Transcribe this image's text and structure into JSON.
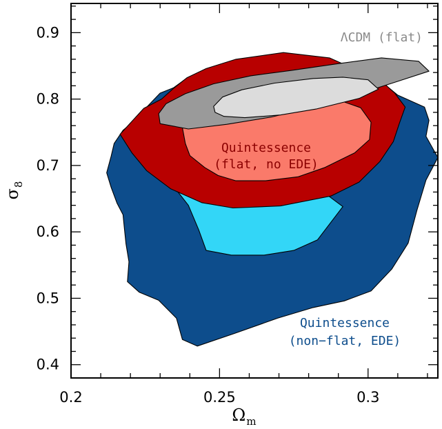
{
  "chart_data": {
    "type": "contour",
    "xlabel": "Ω",
    "xlabel_sub": "m",
    "ylabel": "σ",
    "ylabel_sub": "8",
    "xlim": [
      0.2,
      0.3235
    ],
    "ylim": [
      0.38,
      0.944
    ],
    "x_ticks": [
      0.2,
      0.25,
      0.3
    ],
    "x_tick_labels": [
      "0.2",
      "0.25",
      "0.3"
    ],
    "y_ticks": [
      0.4,
      0.5,
      0.6,
      0.7,
      0.8,
      0.9
    ],
    "y_tick_labels": [
      "0.4",
      "0.5",
      "0.6",
      "0.7",
      "0.8",
      "0.9"
    ],
    "grid": false,
    "annotations": [
      {
        "id": "lcdm",
        "lines": [
          "ΛCDM (flat)"
        ],
        "color": "#8a8a8a"
      },
      {
        "id": "quint-flat",
        "lines": [
          "Quintessence",
          "(flat, no EDE)"
        ],
        "color": "#8b0000"
      },
      {
        "id": "quint-nonflat",
        "lines": [
          "Quintessence",
          "(non−flat, EDE)"
        ],
        "color": "#0d4d8c"
      }
    ],
    "series": [
      {
        "id": "quint-nonflat-outer",
        "color": "#0d4d8c",
        "points": [
          [
            0.2175,
            0.753
          ],
          [
            0.222,
            0.77
          ],
          [
            0.2255,
            0.788
          ],
          [
            0.23,
            0.809
          ],
          [
            0.2345,
            0.817
          ],
          [
            0.2385,
            0.83
          ],
          [
            0.2435,
            0.836
          ],
          [
            0.2485,
            0.84
          ],
          [
            0.261,
            0.857
          ],
          [
            0.2805,
            0.862
          ],
          [
            0.292,
            0.849
          ],
          [
            0.298,
            0.829
          ],
          [
            0.307,
            0.817
          ],
          [
            0.31,
            0.806
          ],
          [
            0.319,
            0.788
          ],
          [
            0.3205,
            0.768
          ],
          [
            0.3195,
            0.744
          ],
          [
            0.3235,
            0.712
          ],
          [
            0.3195,
            0.678
          ],
          [
            0.3165,
            0.633
          ],
          [
            0.3135,
            0.583
          ],
          [
            0.308,
            0.544
          ],
          [
            0.301,
            0.511
          ],
          [
            0.292,
            0.496
          ],
          [
            0.2815,
            0.486
          ],
          [
            0.2695,
            0.47
          ],
          [
            0.255,
            0.447
          ],
          [
            0.2425,
            0.428
          ],
          [
            0.2375,
            0.438
          ],
          [
            0.2355,
            0.47
          ],
          [
            0.2295,
            0.497
          ],
          [
            0.223,
            0.509
          ],
          [
            0.219,
            0.525
          ],
          [
            0.2195,
            0.555
          ],
          [
            0.2185,
            0.582
          ],
          [
            0.218,
            0.604
          ],
          [
            0.2175,
            0.626
          ],
          [
            0.2155,
            0.643
          ],
          [
            0.2135,
            0.667
          ],
          [
            0.212,
            0.689
          ],
          [
            0.2135,
            0.714
          ],
          [
            0.2145,
            0.733
          ]
        ]
      },
      {
        "id": "quint-nonflat-inner",
        "color": "#33d6f7",
        "points": [
          [
            0.2325,
            0.709
          ],
          [
            0.236,
            0.66
          ],
          [
            0.2395,
            0.64
          ],
          [
            0.243,
            0.603
          ],
          [
            0.2455,
            0.572
          ],
          [
            0.254,
            0.565
          ],
          [
            0.265,
            0.565
          ],
          [
            0.275,
            0.572
          ],
          [
            0.283,
            0.588
          ],
          [
            0.2915,
            0.638
          ],
          [
            0.2825,
            0.668
          ]
        ]
      },
      {
        "id": "quint-flat-outer",
        "color": "#b80000",
        "points": [
          [
            0.2165,
            0.747
          ],
          [
            0.221,
            0.769
          ],
          [
            0.2245,
            0.786
          ],
          [
            0.2305,
            0.8
          ],
          [
            0.2345,
            0.816
          ],
          [
            0.239,
            0.832
          ],
          [
            0.2455,
            0.846
          ],
          [
            0.2555,
            0.86
          ],
          [
            0.2715,
            0.87
          ],
          [
            0.287,
            0.862
          ],
          [
            0.2975,
            0.841
          ],
          [
            0.3045,
            0.827
          ],
          [
            0.309,
            0.809
          ],
          [
            0.3125,
            0.788
          ],
          [
            0.3105,
            0.763
          ],
          [
            0.3085,
            0.736
          ],
          [
            0.304,
            0.706
          ],
          [
            0.297,
            0.675
          ],
          [
            0.2875,
            0.654
          ],
          [
            0.2705,
            0.639
          ],
          [
            0.2545,
            0.636
          ],
          [
            0.244,
            0.644
          ],
          [
            0.2335,
            0.665
          ],
          [
            0.2255,
            0.692
          ],
          [
            0.2205,
            0.719
          ]
        ]
      },
      {
        "id": "quint-flat-inner",
        "color": "#fa7a6a",
        "points": [
          [
            0.2385,
            0.733
          ],
          [
            0.24,
            0.715
          ],
          [
            0.245,
            0.697
          ],
          [
            0.2495,
            0.685
          ],
          [
            0.2555,
            0.677
          ],
          [
            0.2655,
            0.677
          ],
          [
            0.2765,
            0.683
          ],
          [
            0.2855,
            0.697
          ],
          [
            0.2955,
            0.719
          ],
          [
            0.3005,
            0.739
          ],
          [
            0.301,
            0.765
          ],
          [
            0.2975,
            0.787
          ],
          [
            0.2905,
            0.798
          ],
          [
            0.2795,
            0.805
          ],
          [
            0.2675,
            0.806
          ],
          [
            0.2515,
            0.795
          ],
          [
            0.242,
            0.78
          ],
          [
            0.2375,
            0.757
          ]
        ]
      },
      {
        "id": "lcdm-outer",
        "color": "#9a9a9a",
        "points": [
          [
            0.23,
            0.763
          ],
          [
            0.2295,
            0.778
          ],
          [
            0.232,
            0.793
          ],
          [
            0.2385,
            0.808
          ],
          [
            0.248,
            0.823
          ],
          [
            0.2605,
            0.835
          ],
          [
            0.274,
            0.843
          ],
          [
            0.2895,
            0.853
          ],
          [
            0.3045,
            0.862
          ],
          [
            0.317,
            0.857
          ],
          [
            0.3205,
            0.842
          ],
          [
            0.3095,
            0.826
          ],
          [
            0.297,
            0.808
          ],
          [
            0.2825,
            0.789
          ],
          [
            0.2675,
            0.773
          ],
          [
            0.2525,
            0.762
          ],
          [
            0.2395,
            0.755
          ]
        ]
      },
      {
        "id": "lcdm-inner",
        "color": "#dcdcdc",
        "points": [
          [
            0.2485,
            0.78
          ],
          [
            0.248,
            0.789
          ],
          [
            0.251,
            0.803
          ],
          [
            0.2575,
            0.814
          ],
          [
            0.2685,
            0.824
          ],
          [
            0.2815,
            0.831
          ],
          [
            0.2915,
            0.833
          ],
          [
            0.3,
            0.829
          ],
          [
            0.3035,
            0.815
          ],
          [
            0.297,
            0.801
          ],
          [
            0.2825,
            0.785
          ],
          [
            0.2705,
            0.776
          ],
          [
            0.2585,
            0.772
          ],
          [
            0.2515,
            0.774
          ]
        ]
      }
    ]
  }
}
